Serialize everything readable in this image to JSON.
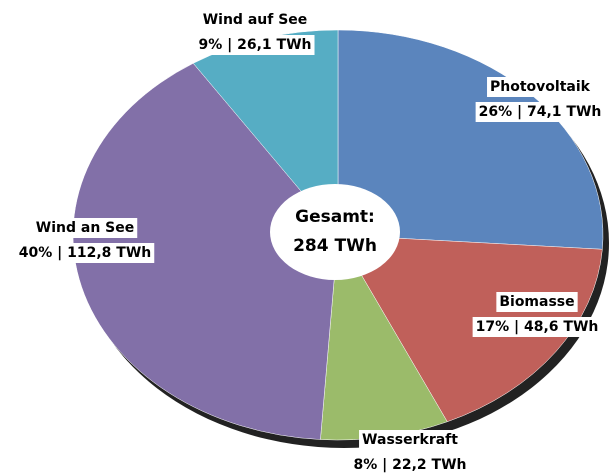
{
  "chart_data": {
    "type": "pie",
    "center_label": [
      "Gesamt:",
      "284 TWh"
    ],
    "categories": [
      "Photovoltaik",
      "Biomasse",
      "Wasserkraft",
      "Wind an See",
      "Wind auf See"
    ],
    "values": [
      74.1,
      48.6,
      22.2,
      112.8,
      26.1
    ],
    "value_labels": [
      "26% | 74,1 TWh",
      "17% | 48,6 TWh",
      "8% | 22,2 TWh",
      "40% | 112,8 TWh",
      "9% | 26,1 TWh"
    ],
    "colors": [
      "#5b85bd",
      "#c0605a",
      "#9bbb6a",
      "#8270a8",
      "#56adc4"
    ]
  }
}
